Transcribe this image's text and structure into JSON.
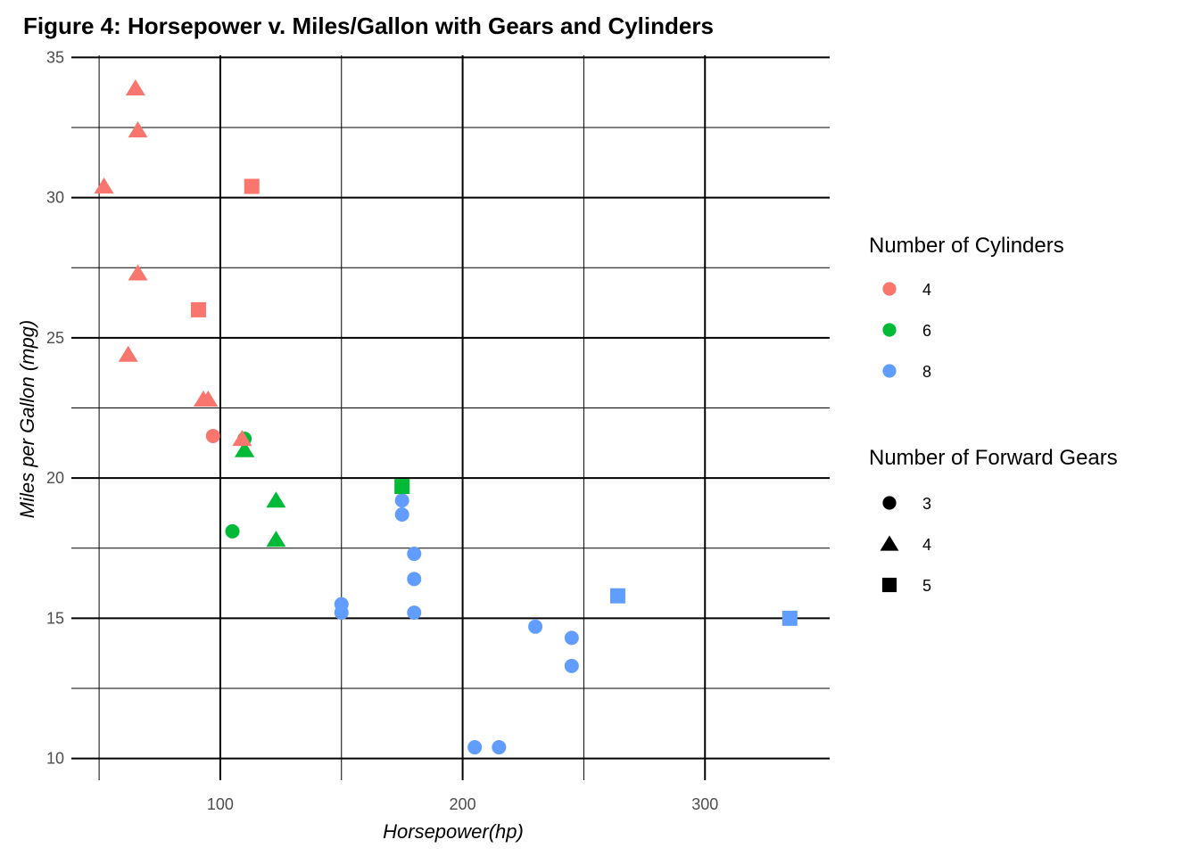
{
  "chart_data": {
    "type": "scatter",
    "title": "Figure 4: Horsepower v. Miles/Gallon with Gears and Cylinders",
    "xlabel": "Horsepower(hp)",
    "ylabel": "Miles per Gallon (mpg)",
    "xlim": [
      38.55,
      351.45
    ],
    "ylim": [
      9.225,
      35.075
    ],
    "x_ticks": [
      100,
      200,
      300
    ],
    "x_tick_labels": [
      "100",
      "200",
      "300"
    ],
    "y_ticks": [
      10,
      15,
      20,
      25,
      30,
      35
    ],
    "y_tick_labels": [
      "10",
      "15",
      "20",
      "25",
      "30",
      "35"
    ],
    "x_minor_ticks": [
      50,
      150,
      250
    ],
    "y_minor_ticks": [
      12.5,
      17.5,
      22.5,
      27.5,
      32.5
    ],
    "grid": true,
    "legend_position": "right",
    "legends": [
      {
        "title": "Number of Cylinders",
        "items": [
          {
            "label": "4",
            "color": "#F8766D",
            "shape": "circle"
          },
          {
            "label": "6",
            "color": "#00BA38",
            "shape": "circle"
          },
          {
            "label": "8",
            "color": "#619CFF",
            "shape": "circle"
          }
        ]
      },
      {
        "title": "Number of Forward Gears",
        "items": [
          {
            "label": "3",
            "color": "#000000",
            "shape": "circle"
          },
          {
            "label": "4",
            "color": "#000000",
            "shape": "triangle"
          },
          {
            "label": "5",
            "color": "#000000",
            "shape": "square"
          }
        ]
      }
    ],
    "colors": {
      "4": "#F8766D",
      "6": "#00BA38",
      "8": "#619CFF"
    },
    "points": [
      {
        "hp": 110,
        "mpg": 21.0,
        "cyl": "6",
        "gear": "4"
      },
      {
        "hp": 110,
        "mpg": 21.0,
        "cyl": "6",
        "gear": "4"
      },
      {
        "hp": 93,
        "mpg": 22.8,
        "cyl": "4",
        "gear": "4"
      },
      {
        "hp": 110,
        "mpg": 21.4,
        "cyl": "6",
        "gear": "3"
      },
      {
        "hp": 175,
        "mpg": 18.7,
        "cyl": "8",
        "gear": "3"
      },
      {
        "hp": 105,
        "mpg": 18.1,
        "cyl": "6",
        "gear": "3"
      },
      {
        "hp": 245,
        "mpg": 14.3,
        "cyl": "8",
        "gear": "3"
      },
      {
        "hp": 62,
        "mpg": 24.4,
        "cyl": "4",
        "gear": "4"
      },
      {
        "hp": 95,
        "mpg": 22.8,
        "cyl": "4",
        "gear": "4"
      },
      {
        "hp": 123,
        "mpg": 19.2,
        "cyl": "6",
        "gear": "4"
      },
      {
        "hp": 123,
        "mpg": 17.8,
        "cyl": "6",
        "gear": "4"
      },
      {
        "hp": 180,
        "mpg": 16.4,
        "cyl": "8",
        "gear": "3"
      },
      {
        "hp": 180,
        "mpg": 17.3,
        "cyl": "8",
        "gear": "3"
      },
      {
        "hp": 180,
        "mpg": 15.2,
        "cyl": "8",
        "gear": "3"
      },
      {
        "hp": 205,
        "mpg": 10.4,
        "cyl": "8",
        "gear": "3"
      },
      {
        "hp": 215,
        "mpg": 10.4,
        "cyl": "8",
        "gear": "3"
      },
      {
        "hp": 230,
        "mpg": 14.7,
        "cyl": "8",
        "gear": "3"
      },
      {
        "hp": 66,
        "mpg": 32.4,
        "cyl": "4",
        "gear": "4"
      },
      {
        "hp": 52,
        "mpg": 30.4,
        "cyl": "4",
        "gear": "4"
      },
      {
        "hp": 65,
        "mpg": 33.9,
        "cyl": "4",
        "gear": "4"
      },
      {
        "hp": 97,
        "mpg": 21.5,
        "cyl": "4",
        "gear": "3"
      },
      {
        "hp": 150,
        "mpg": 15.5,
        "cyl": "8",
        "gear": "3"
      },
      {
        "hp": 150,
        "mpg": 15.2,
        "cyl": "8",
        "gear": "3"
      },
      {
        "hp": 245,
        "mpg": 13.3,
        "cyl": "8",
        "gear": "3"
      },
      {
        "hp": 175,
        "mpg": 19.2,
        "cyl": "8",
        "gear": "3"
      },
      {
        "hp": 66,
        "mpg": 27.3,
        "cyl": "4",
        "gear": "4"
      },
      {
        "hp": 91,
        "mpg": 26.0,
        "cyl": "4",
        "gear": "5"
      },
      {
        "hp": 113,
        "mpg": 30.4,
        "cyl": "4",
        "gear": "5"
      },
      {
        "hp": 264,
        "mpg": 15.8,
        "cyl": "8",
        "gear": "5"
      },
      {
        "hp": 175,
        "mpg": 19.7,
        "cyl": "6",
        "gear": "5"
      },
      {
        "hp": 335,
        "mpg": 15.0,
        "cyl": "8",
        "gear": "5"
      },
      {
        "hp": 109,
        "mpg": 21.4,
        "cyl": "4",
        "gear": "4"
      }
    ]
  }
}
